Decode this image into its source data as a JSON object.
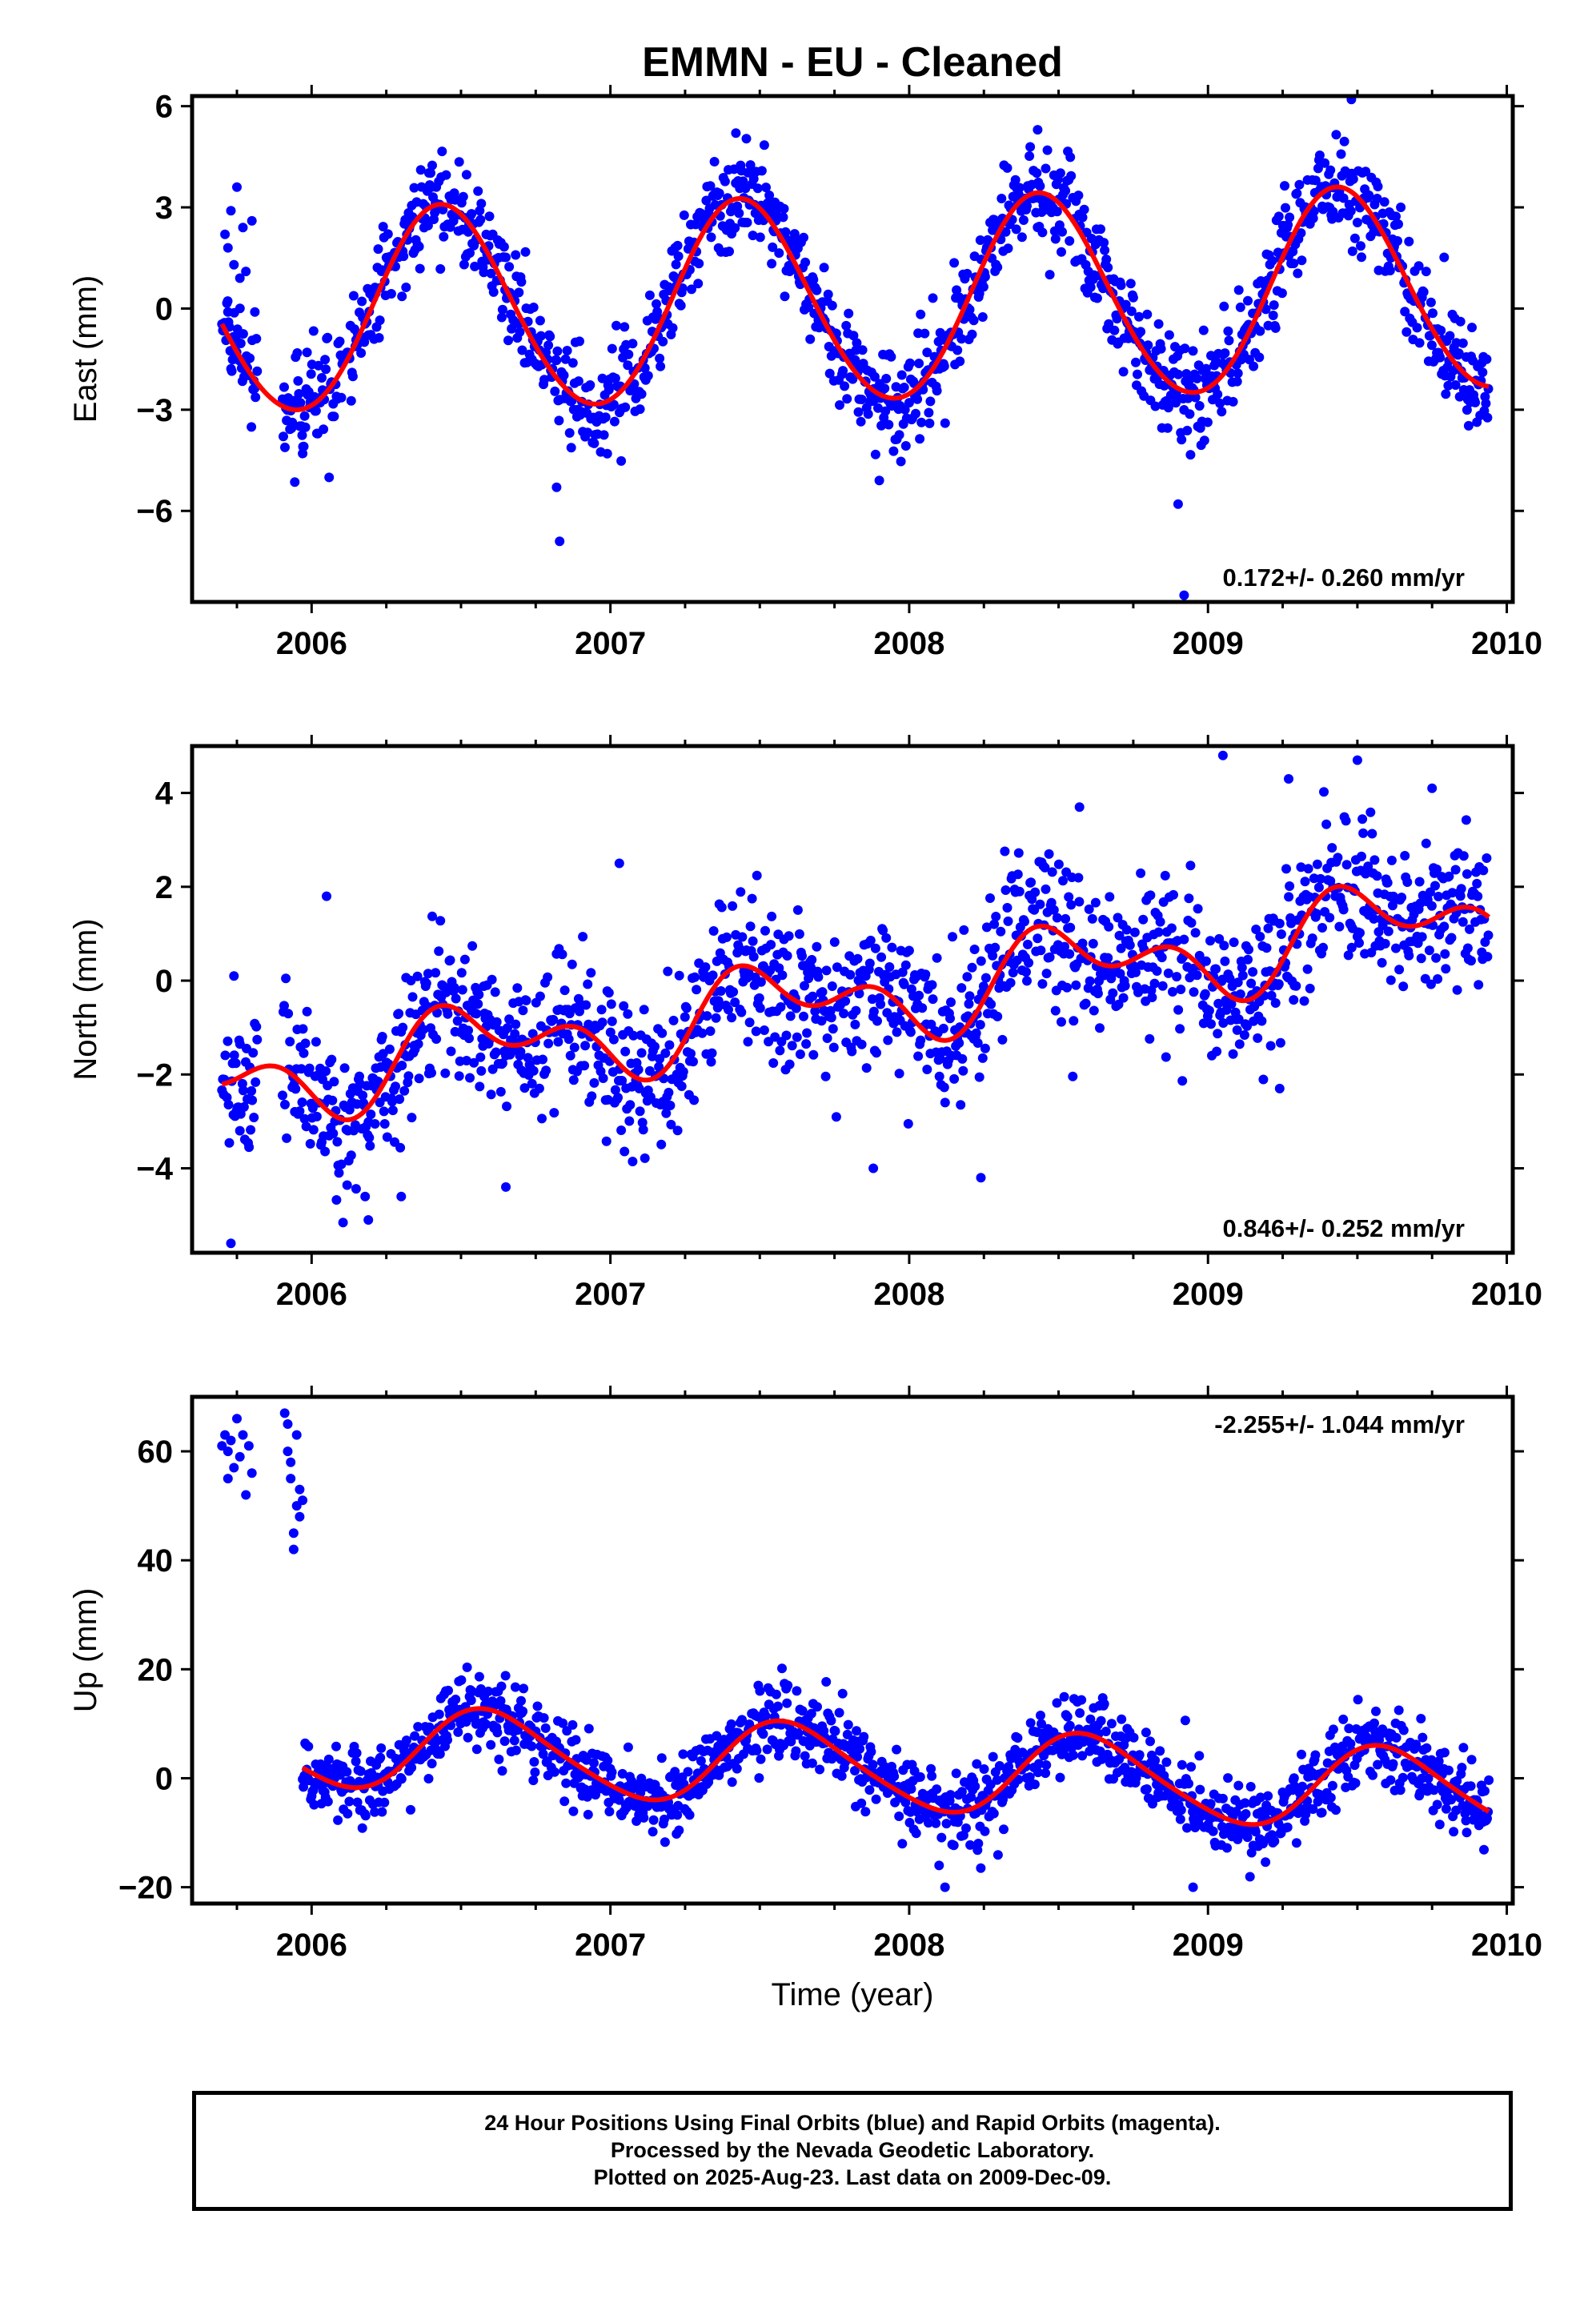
{
  "figure": {
    "title": "EMMN  - EU - Cleaned",
    "xlabel": "Time (year)",
    "footer": [
      "24 Hour Positions Using Final Orbits (blue) and Rapid Orbits (magenta).",
      "Processed by the Nevada Geodetic Laboratory.",
      "Plotted on 2025-Aug-23. Last data on 2009-Dec-09."
    ],
    "colors": {
      "points": "#0000ff",
      "model": "#ff0000",
      "frame": "#000000"
    }
  },
  "chart_data": [
    {
      "type": "scatter",
      "ylabel": "East (mm)",
      "xlim": [
        2005.6,
        2010.02
      ],
      "ylim": [
        -8.7,
        6.3
      ],
      "x_ticks": [
        2006,
        2007,
        2008,
        2009,
        2010
      ],
      "y_ticks": [
        -6,
        -3,
        0,
        3,
        6
      ],
      "y_tick_labels": [
        "−6",
        "−3",
        "0",
        "3",
        "6"
      ],
      "rate_label": "0.172+/- 0.260 mm/yr",
      "rate_label_position": "bottom-right",
      "data_start": 2005.7,
      "data_end": 2009.94,
      "gap": [
        2005.82,
        2005.9
      ],
      "model": {
        "mean": 0.2,
        "rate": 0.172,
        "annual_amp": 3.0,
        "peak": 2006.44,
        "semiannual_amp": 0.15,
        "semiannual_phase": 0.1
      },
      "noise_sd": 0.75,
      "outliers": [
        {
          "x": 2005.71,
          "y": 2.2
        },
        {
          "x": 2005.72,
          "y": 1.8
        },
        {
          "x": 2005.73,
          "y": 2.9
        },
        {
          "x": 2005.74,
          "y": 1.3
        },
        {
          "x": 2005.75,
          "y": 3.6
        },
        {
          "x": 2005.76,
          "y": 0.9
        },
        {
          "x": 2005.77,
          "y": 2.4
        },
        {
          "x": 2005.78,
          "y": 1.1
        },
        {
          "x": 2005.8,
          "y": 2.6
        },
        {
          "x": 2005.81,
          "y": -0.1
        },
        {
          "x": 2005.72,
          "y": -0.1
        },
        {
          "x": 2006.83,
          "y": -6.9
        },
        {
          "x": 2006.82,
          "y": -5.3
        },
        {
          "x": 2008.9,
          "y": -5.8
        },
        {
          "x": 2007.9,
          "y": -5.1
        },
        {
          "x": 2009.48,
          "y": 6.2
        },
        {
          "x": 2007.42,
          "y": 5.2
        },
        {
          "x": 2008.43,
          "y": 5.3
        },
        {
          "x": 2005.97,
          "y": -4.3
        },
        {
          "x": 2008.92,
          "y": -8.5
        }
      ]
    },
    {
      "type": "scatter",
      "ylabel": "North (mm)",
      "xlim": [
        2005.6,
        2010.02
      ],
      "ylim": [
        -5.8,
        5.0
      ],
      "x_ticks": [
        2006,
        2007,
        2008,
        2009,
        2010
      ],
      "y_ticks": [
        -4,
        -2,
        0,
        2,
        4
      ],
      "y_tick_labels": [
        "−4",
        "−2",
        "0",
        "2",
        "4"
      ],
      "rate_label": "0.846+/- 0.252 mm/yr",
      "rate_label_position": "bottom-right",
      "data_start": 2005.7,
      "data_end": 2009.94,
      "gap": [
        2005.82,
        2005.9
      ],
      "model": {
        "mean": -0.4,
        "rate": 0.846,
        "annual_amp": 0.7,
        "peak": 2006.55,
        "semiannual_amp": 0.55,
        "semiannual_phase": 0.3
      },
      "noise_sd": 0.8,
      "outliers": [
        {
          "x": 2005.73,
          "y": -5.6
        },
        {
          "x": 2005.76,
          "y": -3.2
        },
        {
          "x": 2005.74,
          "y": 0.1
        },
        {
          "x": 2006.19,
          "y": -5.1
        },
        {
          "x": 2006.3,
          "y": -4.6
        },
        {
          "x": 2006.65,
          "y": -4.4
        },
        {
          "x": 2007.88,
          "y": -4.0
        },
        {
          "x": 2008.24,
          "y": -4.2
        },
        {
          "x": 2009.05,
          "y": 4.8
        },
        {
          "x": 2009.27,
          "y": 4.3
        },
        {
          "x": 2009.5,
          "y": 4.7
        },
        {
          "x": 2009.75,
          "y": 4.1
        },
        {
          "x": 2008.57,
          "y": 3.7
        },
        {
          "x": 2006.05,
          "y": 1.8
        },
        {
          "x": 2007.03,
          "y": 2.5
        },
        {
          "x": 2009.24,
          "y": -2.3
        }
      ]
    },
    {
      "type": "scatter",
      "ylabel": "Up (mm)",
      "xlim": [
        2005.6,
        2010.02
      ],
      "ylim": [
        -23,
        70
      ],
      "x_ticks": [
        2006,
        2007,
        2008,
        2009,
        2010
      ],
      "y_ticks": [
        -20,
        0,
        20,
        40,
        60
      ],
      "y_tick_labels": [
        "−20",
        "0",
        "20",
        "40",
        "60"
      ],
      "rate_label": "-2.255+/- 1.044 mm/yr",
      "rate_label_position": "top-right",
      "data_start": 2005.97,
      "data_end": 2009.94,
      "gap": [
        2005.82,
        2005.9
      ],
      "model": {
        "mean": 2.0,
        "rate": -2.255,
        "annual_amp": 7.5,
        "peak": 2006.6,
        "semiannual_amp": 1.0,
        "semiannual_phase": 0.2
      },
      "noise_sd": 3.4,
      "outliers": [
        {
          "x": 2005.7,
          "y": 61
        },
        {
          "x": 2005.71,
          "y": 63
        },
        {
          "x": 2005.72,
          "y": 60
        },
        {
          "x": 2005.73,
          "y": 62
        },
        {
          "x": 2005.74,
          "y": 57
        },
        {
          "x": 2005.75,
          "y": 66
        },
        {
          "x": 2005.76,
          "y": 59
        },
        {
          "x": 2005.77,
          "y": 63
        },
        {
          "x": 2005.78,
          "y": 52
        },
        {
          "x": 2005.79,
          "y": 61
        },
        {
          "x": 2005.8,
          "y": 56
        },
        {
          "x": 2005.72,
          "y": 55
        },
        {
          "x": 2005.91,
          "y": 67
        },
        {
          "x": 2005.92,
          "y": 65
        },
        {
          "x": 2005.92,
          "y": 60
        },
        {
          "x": 2005.93,
          "y": 58
        },
        {
          "x": 2005.94,
          "y": 45
        },
        {
          "x": 2005.94,
          "y": 42
        },
        {
          "x": 2005.95,
          "y": 50
        },
        {
          "x": 2005.96,
          "y": 53
        },
        {
          "x": 2005.96,
          "y": 48
        },
        {
          "x": 2005.97,
          "y": 51
        },
        {
          "x": 2005.95,
          "y": 63
        },
        {
          "x": 2005.93,
          "y": 55
        },
        {
          "x": 2008.12,
          "y": -20
        },
        {
          "x": 2008.95,
          "y": -20
        },
        {
          "x": 2008.1,
          "y": -16
        }
      ]
    }
  ]
}
